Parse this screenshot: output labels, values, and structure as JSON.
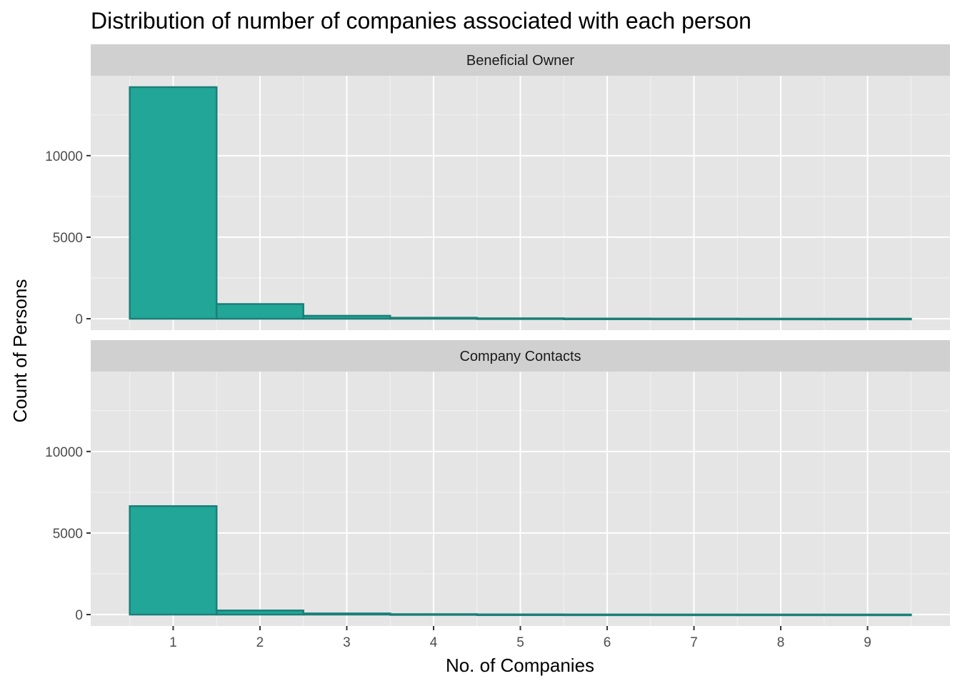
{
  "chart_data": {
    "type": "bar",
    "title": "Distribution of number of companies associated with each person",
    "xlabel": "No. of Companies",
    "ylabel": "Count of Persons",
    "x": [
      1,
      2,
      3,
      4,
      5,
      6,
      7,
      8,
      9
    ],
    "x_tick_labels": [
      "1",
      "2",
      "3",
      "4",
      "5",
      "6",
      "7",
      "8",
      "9"
    ],
    "xlim": [
      0.05,
      9.95
    ],
    "ylim": [
      -700,
      14900
    ],
    "y_ticks": [
      0,
      5000,
      10000
    ],
    "y_tick_labels": [
      "0",
      "5000",
      "10000"
    ],
    "grid": true,
    "facet_layout": "stacked-vertical",
    "panels": [
      {
        "strip_label": "Beneficial Owner",
        "values": [
          14200,
          900,
          180,
          60,
          25,
          12,
          8,
          5,
          4
        ]
      },
      {
        "strip_label": "Company Contacts",
        "values": [
          6650,
          250,
          70,
          25,
          10,
          6,
          4,
          3,
          2
        ]
      }
    ],
    "colors": {
      "bar_fill": "#21a698",
      "bar_stroke": "#1b7f78",
      "panel_background": "#e5e5e5",
      "grid_major": "#ffffff",
      "strip_background": "#d0d0d0",
      "tick_mark": "#333333"
    }
  }
}
